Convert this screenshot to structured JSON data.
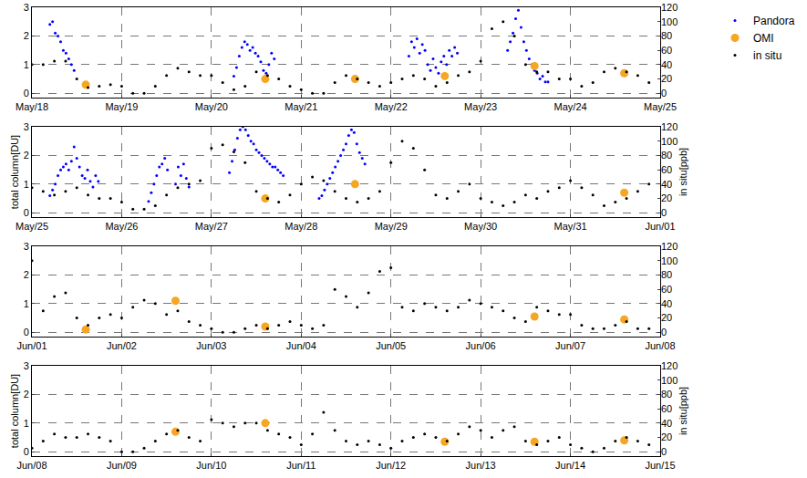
{
  "chart_data": [
    {
      "type": "scatter",
      "grid": true,
      "legend": "upper right",
      "xlim": [
        18,
        25
      ],
      "xticks": [
        {
          "value": 18,
          "label": "May/18"
        },
        {
          "value": 19,
          "label": "May/19"
        },
        {
          "value": 20,
          "label": "May/20"
        },
        {
          "value": 21,
          "label": "May/21"
        },
        {
          "value": 22,
          "label": "May/22"
        },
        {
          "value": 23,
          "label": "May/23"
        },
        {
          "value": 24,
          "label": "May/24"
        },
        {
          "value": 25,
          "label": "May/25"
        }
      ],
      "ylim": [
        -0.15,
        3
      ],
      "yticks": [
        0,
        1,
        2,
        3
      ],
      "y2lim": [
        -6,
        120
      ],
      "y2ticks": [
        0,
        20,
        40,
        60,
        80,
        100,
        120
      ],
      "series": [
        {
          "name": "Pandora",
          "color": "#0000ff",
          "marker": "dot",
          "x": [
            18.2,
            18.23,
            18.26,
            18.29,
            18.32,
            18.35,
            18.38,
            18.41,
            18.44,
            18.47,
            20.25,
            20.28,
            20.31,
            20.34,
            20.37,
            20.4,
            20.43,
            20.46,
            20.49,
            20.52,
            20.55,
            20.58,
            20.61,
            20.64,
            20.67,
            20.7,
            22.2,
            22.23,
            22.26,
            22.29,
            22.32,
            22.35,
            22.38,
            22.41,
            22.44,
            22.47,
            22.5,
            22.53,
            22.56,
            22.59,
            22.62,
            22.65,
            22.68,
            22.71,
            22.74,
            23.3,
            23.33,
            23.36,
            23.39,
            23.42,
            23.45,
            23.48,
            23.51,
            23.54,
            23.57,
            23.6,
            23.63,
            23.66,
            23.69,
            23.72,
            23.75
          ],
          "values": [
            2.4,
            2.5,
            2.1,
            2.0,
            1.8,
            1.5,
            1.4,
            1.2,
            1.0,
            0.8,
            0.6,
            0.9,
            1.3,
            1.6,
            1.8,
            1.7,
            1.5,
            1.6,
            1.4,
            1.3,
            1.1,
            0.8,
            0.7,
            1.0,
            1.4,
            1.2,
            1.3,
            1.8,
            1.6,
            1.9,
            1.4,
            1.7,
            1.5,
            1.0,
            0.8,
            1.2,
            0.9,
            0.7,
            1.1,
            1.3,
            1.0,
            1.5,
            1.3,
            1.6,
            1.4,
            1.5,
            1.8,
            2.1,
            2.6,
            2.9,
            2.3,
            1.8,
            1.5,
            1.2,
            1.0,
            0.8,
            0.7,
            0.5,
            0.6,
            0.4,
            0.4
          ]
        },
        {
          "name": "OMI",
          "color": "#f5a623",
          "marker": "circle",
          "x": [
            18.6,
            20.6,
            21.6,
            22.6,
            23.6,
            24.6
          ],
          "values": [
            0.3,
            0.5,
            0.5,
            0.6,
            0.95,
            0.7
          ]
        },
        {
          "name": "in situ",
          "color": "#000000",
          "marker": "dot",
          "axis": "y2",
          "x": [
            18,
            18.125,
            18.25,
            18.375,
            18.5,
            18.625,
            18.75,
            18.875,
            19,
            19.125,
            19.25,
            19.375,
            19.5,
            19.625,
            19.75,
            19.875,
            20,
            20.125,
            20.25,
            20.375,
            20.5,
            20.625,
            20.75,
            20.875,
            21,
            21.125,
            21.25,
            21.375,
            21.5,
            21.625,
            21.75,
            21.875,
            22,
            22.125,
            22.25,
            22.375,
            22.5,
            22.625,
            22.75,
            22.875,
            23,
            23.125,
            23.25,
            23.375,
            23.5,
            23.625,
            23.75,
            23.875,
            24,
            24.125,
            24.25,
            24.375,
            24.5,
            24.625,
            24.75,
            24.875
          ],
          "values": [
            40,
            40,
            45,
            45,
            20,
            8,
            10,
            12,
            10,
            0,
            0,
            10,
            25,
            35,
            30,
            25,
            25,
            15,
            5,
            10,
            30,
            25,
            20,
            10,
            5,
            0,
            0,
            15,
            25,
            20,
            15,
            10,
            15,
            20,
            25,
            20,
            10,
            15,
            25,
            30,
            45,
            90,
            100,
            80,
            40,
            30,
            30,
            20,
            20,
            10,
            15,
            30,
            35,
            30,
            25,
            15
          ]
        }
      ]
    },
    {
      "type": "scatter",
      "grid": true,
      "y_label": "total column[DU]",
      "y2_label": "in situ[ppb]",
      "xlim": [
        25,
        32
      ],
      "xticks": [
        {
          "value": 25,
          "label": "May/25"
        },
        {
          "value": 26,
          "label": "May/26"
        },
        {
          "value": 27,
          "label": "May/27"
        },
        {
          "value": 28,
          "label": "May/28"
        },
        {
          "value": 29,
          "label": "May/29"
        },
        {
          "value": 30,
          "label": "May/30"
        },
        {
          "value": 31,
          "label": "May/31"
        },
        {
          "value": 32,
          "label": "Jun/01"
        }
      ],
      "ylim": [
        -0.15,
        3
      ],
      "yticks": [
        0,
        1,
        2,
        3
      ],
      "y2lim": [
        -6,
        120
      ],
      "y2ticks": [
        0,
        20,
        40,
        60,
        80,
        100,
        120
      ],
      "series": [
        {
          "name": "Pandora",
          "color": "#0000ff",
          "marker": "dot",
          "x": [
            25.2,
            25.23,
            25.26,
            25.29,
            25.32,
            25.35,
            25.38,
            25.41,
            25.44,
            25.47,
            25.5,
            25.53,
            25.56,
            25.59,
            25.62,
            25.65,
            25.68,
            25.71,
            25.74,
            26.3,
            26.33,
            26.36,
            26.39,
            26.42,
            26.45,
            26.48,
            26.51,
            26.6,
            26.63,
            26.66,
            26.69,
            26.72,
            26.75,
            27.2,
            27.23,
            27.26,
            27.29,
            27.32,
            27.35,
            27.38,
            27.41,
            27.44,
            27.47,
            27.5,
            27.53,
            27.56,
            27.59,
            27.62,
            27.65,
            27.68,
            27.71,
            27.74,
            27.77,
            27.8,
            28.2,
            28.23,
            28.26,
            28.29,
            28.32,
            28.35,
            28.38,
            28.41,
            28.44,
            28.47,
            28.5,
            28.53,
            28.56,
            28.59,
            28.62,
            28.65,
            28.68,
            28.71
          ],
          "values": [
            0.6,
            0.8,
            1.0,
            1.3,
            1.5,
            1.6,
            1.7,
            1.5,
            1.8,
            2.3,
            1.9,
            1.6,
            1.3,
            1.2,
            1.5,
            1.1,
            0.9,
            1.3,
            1.1,
            0.4,
            0.7,
            1.0,
            1.3,
            1.6,
            1.7,
            1.9,
            1.5,
            1.0,
            1.6,
            1.3,
            1.7,
            1.2,
            0.9,
            1.4,
            1.8,
            2.2,
            2.6,
            2.9,
            3.0,
            2.9,
            2.7,
            2.5,
            2.4,
            2.2,
            2.1,
            2.0,
            1.9,
            1.8,
            1.7,
            1.6,
            1.6,
            1.5,
            1.4,
            1.3,
            0.5,
            0.6,
            0.8,
            1.0,
            1.2,
            1.4,
            1.6,
            1.8,
            2.0,
            2.2,
            2.4,
            2.7,
            2.9,
            2.8,
            2.4,
            2.1,
            1.9,
            1.7
          ]
        },
        {
          "name": "OMI",
          "color": "#f5a623",
          "marker": "circle",
          "x": [
            27.6,
            28.6,
            31.6
          ],
          "values": [
            0.5,
            1.0,
            0.7
          ]
        },
        {
          "name": "in situ",
          "color": "#000000",
          "marker": "dot",
          "axis": "y2",
          "x": [
            25,
            25.125,
            25.25,
            25.375,
            25.5,
            25.625,
            25.75,
            25.875,
            26,
            26.125,
            26.25,
            26.375,
            26.5,
            26.625,
            26.75,
            26.875,
            27,
            27.125,
            27.25,
            27.375,
            27.5,
            27.625,
            27.75,
            27.875,
            28,
            28.125,
            28.25,
            28.375,
            28.5,
            28.625,
            28.75,
            28.875,
            29,
            29.125,
            29.25,
            29.375,
            29.5,
            29.625,
            29.75,
            29.875,
            30,
            30.125,
            30.25,
            30.375,
            30.5,
            30.625,
            30.75,
            30.875,
            31,
            31.125,
            31.25,
            31.375,
            31.5,
            31.625,
            31.75,
            31.875
          ],
          "values": [
            35,
            30,
            25,
            30,
            35,
            25,
            20,
            20,
            15,
            5,
            5,
            10,
            25,
            35,
            40,
            45,
            90,
            95,
            85,
            70,
            30,
            20,
            15,
            25,
            40,
            50,
            45,
            30,
            20,
            15,
            20,
            30,
            70,
            100,
            90,
            60,
            25,
            20,
            30,
            40,
            20,
            15,
            10,
            15,
            25,
            20,
            30,
            35,
            45,
            35,
            25,
            10,
            15,
            20,
            30,
            40
          ]
        }
      ]
    },
    {
      "type": "scatter",
      "grid": true,
      "xlim": [
        32,
        39
      ],
      "xticks": [
        {
          "value": 32,
          "label": "Jun/01"
        },
        {
          "value": 33,
          "label": "Jun/02"
        },
        {
          "value": 34,
          "label": "Jun/03"
        },
        {
          "value": 35,
          "label": "Jun/04"
        },
        {
          "value": 36,
          "label": "Jun/05"
        },
        {
          "value": 37,
          "label": "Jun/06"
        },
        {
          "value": 38,
          "label": "Jun/07"
        },
        {
          "value": 39,
          "label": "Jun/08"
        }
      ],
      "ylim": [
        -0.15,
        3
      ],
      "yticks": [
        0,
        1,
        2,
        3
      ],
      "y2lim": [
        -6,
        120
      ],
      "y2ticks": [
        0,
        20,
        40,
        60,
        80,
        100,
        120
      ],
      "series": [
        {
          "name": "OMI",
          "color": "#f5a623",
          "marker": "circle",
          "x": [
            32.6,
            33.6,
            34.6,
            37.6,
            38.6
          ],
          "values": [
            0.1,
            1.1,
            0.2,
            0.55,
            0.45
          ]
        },
        {
          "name": "in situ",
          "color": "#000000",
          "marker": "dot",
          "axis": "y2",
          "x": [
            32,
            32.125,
            32.25,
            32.375,
            32.5,
            32.625,
            32.75,
            32.875,
            33,
            33.125,
            33.25,
            33.375,
            33.5,
            33.625,
            33.75,
            33.875,
            34,
            34.125,
            34.25,
            34.375,
            34.5,
            34.625,
            34.75,
            34.875,
            35,
            35.125,
            35.25,
            35.375,
            35.5,
            35.625,
            35.75,
            35.875,
            36,
            36.125,
            36.25,
            36.375,
            36.5,
            36.625,
            36.75,
            36.875,
            37,
            37.125,
            37.25,
            37.375,
            37.5,
            37.625,
            37.75,
            37.875,
            38,
            38.125,
            38.25,
            38.375,
            38.5,
            38.625,
            38.75,
            38.875
          ],
          "values": [
            100,
            30,
            50,
            55,
            20,
            10,
            20,
            25,
            20,
            35,
            45,
            40,
            25,
            30,
            15,
            10,
            5,
            0,
            0,
            5,
            10,
            5,
            10,
            15,
            10,
            5,
            10,
            60,
            50,
            35,
            55,
            85,
            90,
            35,
            30,
            40,
            35,
            30,
            35,
            45,
            40,
            35,
            30,
            20,
            15,
            35,
            30,
            25,
            25,
            10,
            5,
            5,
            10,
            15,
            5,
            5
          ]
        }
      ]
    },
    {
      "type": "scatter",
      "grid": true,
      "y_label": "total column[DU]",
      "y2_label": "in situ[ppb]",
      "xlim": [
        39,
        46
      ],
      "xticks": [
        {
          "value": 39,
          "label": "Jun/08"
        },
        {
          "value": 40,
          "label": "Jun/09"
        },
        {
          "value": 41,
          "label": "Jun/10"
        },
        {
          "value": 42,
          "label": "Jun/11"
        },
        {
          "value": 43,
          "label": "Jun/12"
        },
        {
          "value": 44,
          "label": "Jun/13"
        },
        {
          "value": 45,
          "label": "Jun/14"
        },
        {
          "value": 46,
          "label": "Jun/15"
        }
      ],
      "ylim": [
        -0.15,
        3
      ],
      "yticks": [
        0,
        1,
        2,
        3
      ],
      "y2lim": [
        -6,
        120
      ],
      "y2ticks": [
        0,
        20,
        40,
        60,
        80,
        100,
        120
      ],
      "series": [
        {
          "name": "OMI",
          "color": "#f5a623",
          "marker": "circle",
          "x": [
            40.6,
            41.6,
            43.6,
            44.6,
            45.6
          ],
          "values": [
            0.7,
            1.0,
            0.35,
            0.35,
            0.4
          ]
        },
        {
          "name": "in situ",
          "color": "#000000",
          "marker": "dot",
          "axis": "y2",
          "x": [
            39,
            39.125,
            39.25,
            39.375,
            39.5,
            39.625,
            39.75,
            39.875,
            40,
            40.125,
            40.25,
            40.375,
            40.5,
            40.625,
            40.75,
            40.875,
            41,
            41.125,
            41.25,
            41.375,
            41.5,
            41.625,
            41.75,
            41.875,
            42,
            42.125,
            42.25,
            42.375,
            42.5,
            42.625,
            42.75,
            42.875,
            43,
            43.125,
            43.25,
            43.375,
            43.5,
            43.625,
            43.75,
            43.875,
            44,
            44.125,
            44.25,
            44.375,
            44.5,
            44.625,
            44.75,
            44.875,
            45,
            45.125,
            45.25,
            45.375,
            45.5,
            45.625,
            45.75,
            45.875
          ],
          "values": [
            5,
            15,
            25,
            20,
            20,
            25,
            20,
            15,
            0,
            0,
            5,
            15,
            25,
            30,
            20,
            15,
            45,
            40,
            35,
            40,
            40,
            30,
            25,
            20,
            10,
            25,
            55,
            30,
            15,
            10,
            15,
            10,
            5,
            15,
            20,
            25,
            20,
            15,
            25,
            35,
            30,
            20,
            30,
            35,
            15,
            10,
            15,
            20,
            10,
            5,
            0,
            5,
            15,
            20,
            15,
            10
          ]
        }
      ]
    }
  ]
}
